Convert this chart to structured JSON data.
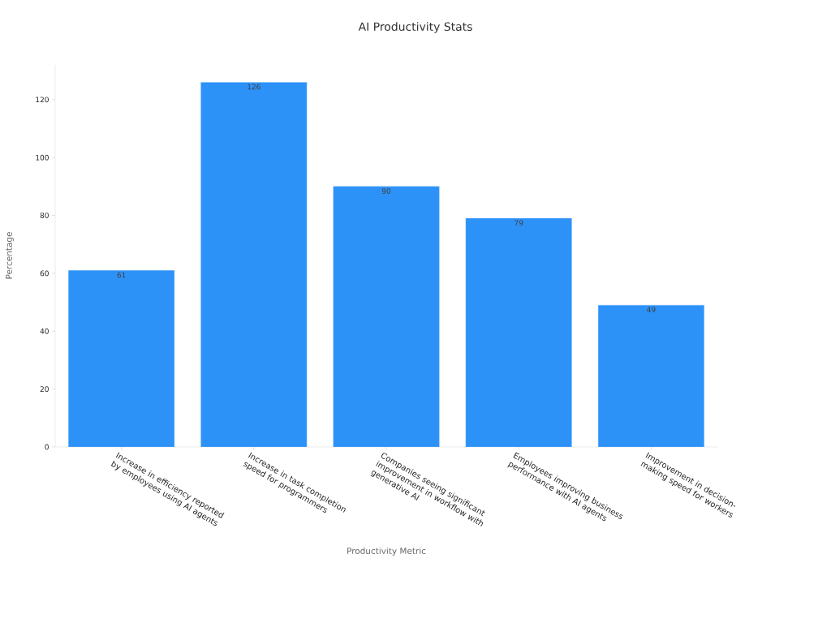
{
  "chart_data": {
    "type": "bar",
    "title": "AI Productivity Stats",
    "xlabel": "Productivity Metric",
    "ylabel": "Percentage",
    "categories": [
      "Increase in efficiency reported by employees using AI agents",
      "Increase in task completion speed for programmers",
      "Companies seeing significant improvement in workflow with generative AI",
      "Employees improving business performance with AI agents",
      "Improvement in decision-making speed for workers"
    ],
    "values": [
      61,
      126,
      90,
      79,
      49
    ],
    "color": "#2d92f7",
    "ylim": [
      0,
      132
    ],
    "yticks": [
      0,
      20,
      40,
      60,
      80,
      100,
      120
    ],
    "data_labels": true,
    "grid": false
  }
}
